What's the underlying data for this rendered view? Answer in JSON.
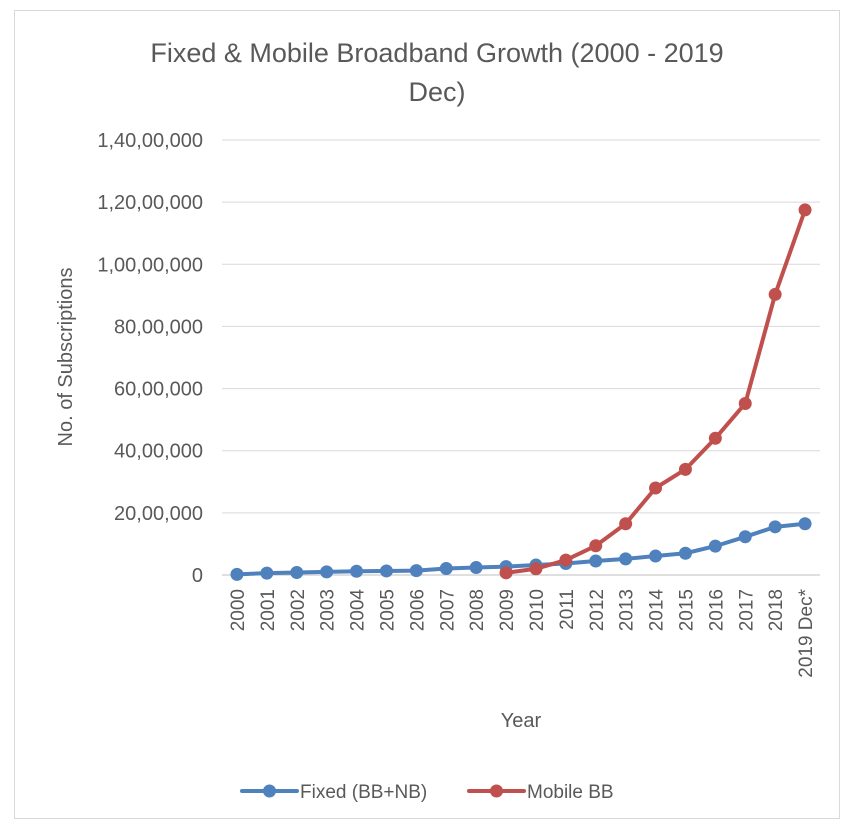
{
  "chart_data": {
    "type": "line",
    "title": "Fixed & Mobile Broadband Growth (2000 - 2019 Dec)",
    "title_lines": [
      "Fixed & Mobile Broadband Growth (2000 - 2019",
      "Dec)"
    ],
    "xlabel": "Year",
    "ylabel": "No. of Subscriptions",
    "ylim": [
      0,
      14000000
    ],
    "yticks": [
      0,
      2000000,
      4000000,
      6000000,
      8000000,
      10000000,
      12000000,
      14000000
    ],
    "ytick_labels": [
      "0",
      "20,00,000",
      "40,00,000",
      "60,00,000",
      "80,00,000",
      "1,00,00,000",
      "1,20,00,000",
      "1,40,00,000"
    ],
    "categories": [
      "2000",
      "2001",
      "2002",
      "2003",
      "2004",
      "2005",
      "2006",
      "2007",
      "2008",
      "2009",
      "2010",
      "2011",
      "2012",
      "2013",
      "2014",
      "2015",
      "2016",
      "2017",
      "2018",
      "2019 Dec*"
    ],
    "grid": true,
    "legend_position": "bottom",
    "series": [
      {
        "name": "Fixed (BB+NB)",
        "color": "#4f81bd",
        "values": [
          20000,
          60000,
          80000,
          100000,
          120000,
          130000,
          140000,
          210000,
          240000,
          270000,
          320000,
          370000,
          450000,
          520000,
          610000,
          700000,
          930000,
          1230000,
          1550000,
          1650000
        ]
      },
      {
        "name": "Mobile BB",
        "color": "#c0504d",
        "values": [
          null,
          null,
          null,
          null,
          null,
          null,
          null,
          null,
          null,
          70000,
          200000,
          480000,
          940000,
          1650000,
          2800000,
          3400000,
          4400000,
          5520000,
          9030000,
          11750000
        ]
      }
    ]
  }
}
